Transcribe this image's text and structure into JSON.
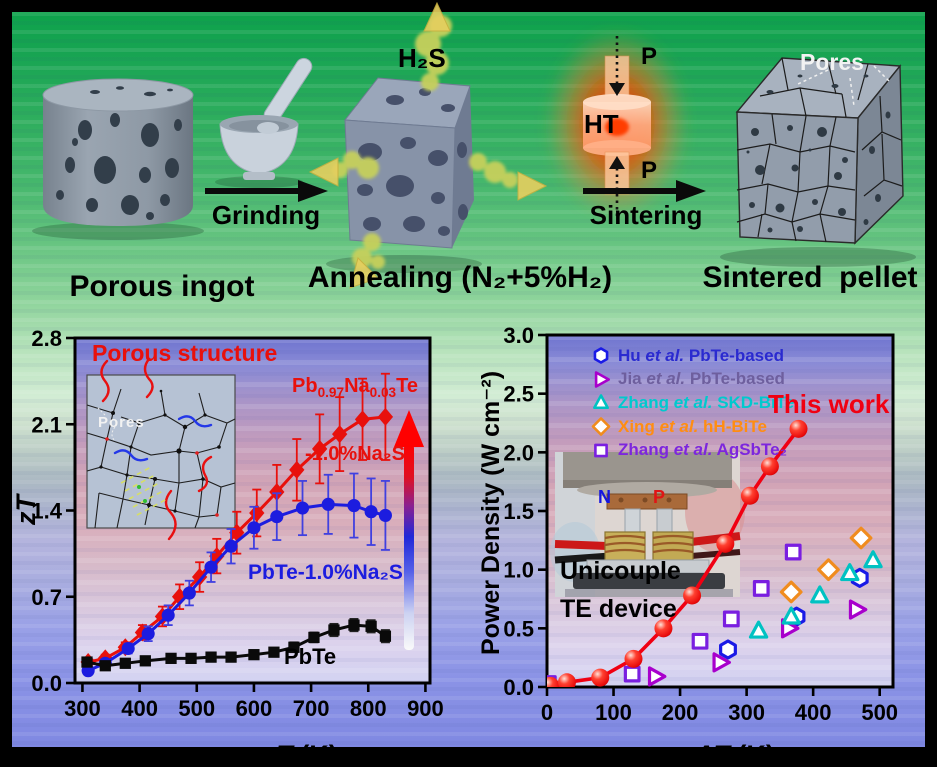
{
  "colors": {
    "red": "#e8100c",
    "blue": "#1c1cdf",
    "black": "#0a0a0a",
    "this_work": "#f00012"
  },
  "process": {
    "step1": "Porous ingot",
    "arrow1": "Grinding",
    "gas": "H₂S",
    "step2": "Annealing (N₂+5%H₂)",
    "arrow2": "Sintering",
    "press_temp": "HT",
    "press_force_top": "P",
    "press_force_bottom": "P",
    "step3": "Sintered  pellet",
    "pores": "Pores"
  },
  "chart_data": [
    {
      "id": "left",
      "type": "line",
      "inset_title": "Porous structure",
      "inset_pores": "Pores",
      "ylabel": "zT",
      "xlabel_italic": "T",
      "xlabel_rest": " (K)",
      "xlim": [
        287,
        908
      ],
      "ylim": [
        0,
        2.8
      ],
      "grid": false,
      "xticks": {
        "values": [
          300,
          400,
          500,
          600,
          700,
          800,
          900
        ],
        "labels": [
          "300",
          "400",
          "500",
          "600",
          "700",
          "800",
          "900"
        ]
      },
      "yticks": {
        "values": [
          0,
          0.7,
          1.4,
          2.1,
          2.8
        ],
        "labels": [
          "0.0",
          "0.7",
          "1.4",
          "2.1",
          "2.8"
        ]
      },
      "series": [
        {
          "name_parts": [
            "Pb",
            "0.97",
            "Na",
            "0.03",
            "Te"
          ],
          "name_line2": "-1.0%Na₂S",
          "marker": "diamond",
          "color": "#e8100c",
          "ecolor": "#e8100c",
          "msize": 9,
          "x": [
            310,
            340,
            375,
            405,
            440,
            470,
            505,
            535,
            570,
            605,
            640,
            675,
            715,
            750,
            790,
            830
          ],
          "y": [
            0.17,
            0.2,
            0.29,
            0.41,
            0.54,
            0.7,
            0.86,
            1.03,
            1.22,
            1.38,
            1.55,
            1.73,
            1.9,
            2.02,
            2.14,
            2.16
          ],
          "err": [
            0.02,
            0.03,
            0.04,
            0.06,
            0.08,
            0.1,
            0.12,
            0.14,
            0.17,
            0.19,
            0.22,
            0.25,
            0.28,
            0.3,
            0.33,
            0.35
          ]
        },
        {
          "name": "PbTe-1.0%Na₂S",
          "marker": "circle",
          "color": "#1c1cdf",
          "ecolor": "#4040e0",
          "msize": 8,
          "x": [
            310,
            340,
            380,
            415,
            450,
            487,
            525,
            560,
            600,
            640,
            685,
            730,
            775,
            805,
            830
          ],
          "y": [
            0.1,
            0.16,
            0.28,
            0.4,
            0.55,
            0.73,
            0.94,
            1.11,
            1.26,
            1.35,
            1.42,
            1.45,
            1.44,
            1.39,
            1.36
          ],
          "err": [
            0.02,
            0.03,
            0.04,
            0.06,
            0.08,
            0.1,
            0.12,
            0.14,
            0.17,
            0.19,
            0.22,
            0.24,
            0.26,
            0.27,
            0.28
          ]
        },
        {
          "name": "PbTe",
          "marker": "square",
          "color": "#0a0a0a",
          "ecolor": "#222222",
          "msize": 7.5,
          "x": [
            308,
            340,
            375,
            410,
            455,
            490,
            525,
            560,
            600,
            635,
            670,
            705,
            740,
            775,
            805,
            830
          ],
          "y": [
            0.17,
            0.14,
            0.16,
            0.18,
            0.2,
            0.2,
            0.21,
            0.21,
            0.23,
            0.25,
            0.29,
            0.37,
            0.43,
            0.47,
            0.46,
            0.38
          ],
          "err": [
            0.03,
            0.03,
            0.03,
            0.03,
            0.03,
            0.03,
            0.03,
            0.03,
            0.03,
            0.03,
            0.04,
            0.04,
            0.05,
            0.05,
            0.05,
            0.05
          ]
        }
      ]
    },
    {
      "id": "right",
      "type": "scatter",
      "ylabel": "Power Density (W cm⁻²)",
      "xlabel_italic": "ΔT",
      "xlabel_rest": " (K)",
      "xlim": [
        0,
        520
      ],
      "ylim": [
        0,
        3.0
      ],
      "grid": false,
      "xticks": {
        "values": [
          0,
          100,
          200,
          300,
          400,
          500
        ],
        "labels": [
          "0",
          "100",
          "200",
          "300",
          "400",
          "500"
        ]
      },
      "yticks": {
        "values": [
          0,
          0.5,
          1,
          1.5,
          2,
          2.5,
          3
        ],
        "labels": [
          "0.0",
          "0.5",
          "1.0",
          "1.5",
          "2.0",
          "2.5",
          "3.0"
        ]
      },
      "this_work": {
        "label": "This work",
        "color": "#f00012",
        "x": [
          5,
          30,
          80,
          130,
          175,
          218,
          268,
          305,
          335,
          378
        ],
        "y": [
          0.01,
          0.04,
          0.08,
          0.24,
          0.5,
          0.78,
          1.22,
          1.63,
          1.88,
          2.2
        ]
      },
      "refs": [
        {
          "pre": "Hu ",
          "etal": "et al.",
          "post": " PbTe-based",
          "marker": "hexagon",
          "mcolor": "#1a1ae6",
          "tcolor": "#2a2ad0",
          "x": [
            272,
            375,
            470
          ],
          "y": [
            0.32,
            0.6,
            0.93
          ]
        },
        {
          "pre": "Jia ",
          "etal": "et al.",
          "post": " PbTe-based",
          "marker": "tri-right",
          "mcolor": "#a800cc",
          "tcolor": "#6e5f9e",
          "x": [
            163,
            260,
            363,
            465
          ],
          "y": [
            0.09,
            0.21,
            0.5,
            0.66
          ]
        },
        {
          "pre": "Zhang ",
          "etal": "et al.",
          "post": " SKD-BiTe",
          "marker": "tri-up",
          "mcolor": "#00c2c2",
          "tcolor": "#00c9ce",
          "x": [
            318,
            367,
            410,
            455,
            490
          ],
          "y": [
            0.48,
            0.6,
            0.78,
            0.97,
            1.08
          ]
        },
        {
          "pre": "Xing ",
          "etal": "et al.",
          "post": " hH-BiTe",
          "marker": "diamond-open",
          "mcolor": "#f08c1e",
          "tcolor": "#ff8d12",
          "x": [
            367,
            423,
            472
          ],
          "y": [
            0.81,
            1.0,
            1.27
          ]
        },
        {
          "pre": "Zhang ",
          "etal": "et al.",
          "post": " AgSbTe₂",
          "marker": "square-open",
          "mcolor": "#7a1fe0",
          "tcolor": "#7d26dd",
          "x": [
            2,
            128,
            230,
            277,
            322,
            370
          ],
          "y": [
            0.03,
            0.11,
            0.39,
            0.58,
            0.84,
            1.15
          ]
        }
      ],
      "inset_line1": "Unicouple",
      "inset_line2": "TE device",
      "inset_n": "N",
      "inset_p": "P"
    }
  ]
}
